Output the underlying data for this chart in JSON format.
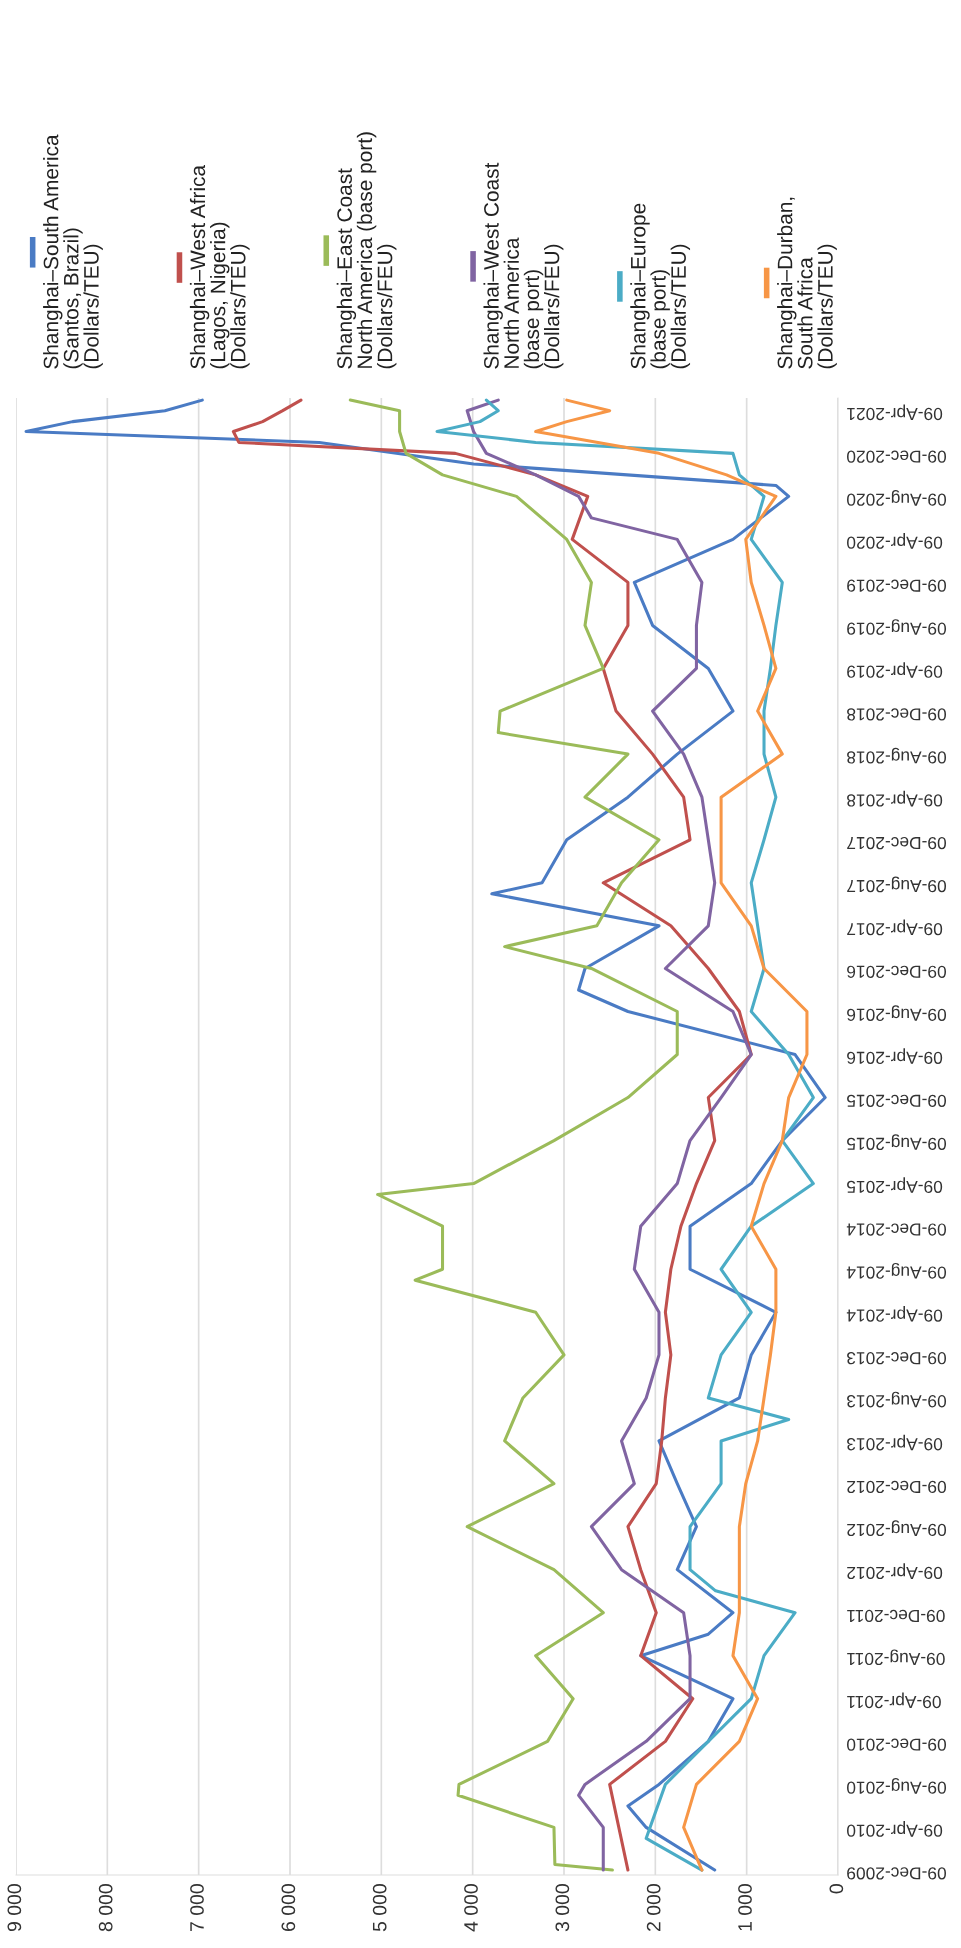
{
  "chart_data": {
    "type": "line",
    "orientation": "horizontal",
    "xlim": [
      9000,
      0
    ],
    "xticks": [
      {
        "value": 9000,
        "label": "9 000"
      },
      {
        "value": 8000,
        "label": "8 000"
      },
      {
        "value": 7000,
        "label": "7 000"
      },
      {
        "value": 6000,
        "label": "6 000"
      },
      {
        "value": 5000,
        "label": "5 000"
      },
      {
        "value": 4000,
        "label": "4 000"
      },
      {
        "value": 3000,
        "label": "3 000"
      },
      {
        "value": 2000,
        "label": "2 000"
      },
      {
        "value": 1000,
        "label": "1 000"
      },
      0
    ],
    "ylim": [
      "2009-11-25",
      "2021-05-15"
    ],
    "yticks": [
      {
        "value": "2009-12-09",
        "label": "09-Dec-2009"
      },
      {
        "value": "2010-04-09",
        "label": "09-Apr-2010"
      },
      {
        "value": "2010-08-09",
        "label": "09-Aug-2010"
      },
      {
        "value": "2010-12-09",
        "label": "09-Dec-2010"
      },
      {
        "value": "2011-04-09",
        "label": "09-Apr-2011"
      },
      {
        "value": "2011-08-09",
        "label": "09-Aug-2011"
      },
      {
        "value": "2011-12-09",
        "label": "09-Dec-2011"
      },
      {
        "value": "2012-04-09",
        "label": "09-Apr-2012"
      },
      {
        "value": "2012-08-09",
        "label": "09-Aug-2012"
      },
      {
        "value": "2012-12-09",
        "label": "09-Dec-2012"
      },
      {
        "value": "2013-04-09",
        "label": "09-Apr-2013"
      },
      {
        "value": "2013-08-09",
        "label": "09-Aug-2013"
      },
      {
        "value": "2013-12-09",
        "label": "09-Dec-2013"
      },
      {
        "value": "2014-04-09",
        "label": "09-Apr-2014"
      },
      {
        "value": "2014-08-09",
        "label": "09-Aug-2014"
      },
      {
        "value": "2014-12-09",
        "label": "09-Dec-2014"
      },
      {
        "value": "2015-04-09",
        "label": "09-Apr-2015"
      },
      {
        "value": "2015-08-09",
        "label": "09-Aug-2015"
      },
      {
        "value": "2015-12-09",
        "label": "09-Dec-2015"
      },
      {
        "value": "2016-04-09",
        "label": "09-Apr-2016"
      },
      {
        "value": "2016-08-09",
        "label": "09-Aug-2016"
      },
      {
        "value": "2016-12-09",
        "label": "09-Dec-2016"
      },
      {
        "value": "2017-04-09",
        "label": "09-Apr-2017"
      },
      {
        "value": "2017-08-09",
        "label": "09-Aug-2017"
      },
      {
        "value": "2017-12-09",
        "label": "09-Dec-2017"
      },
      {
        "value": "2018-04-09",
        "label": "09-Apr-2018"
      },
      {
        "value": "2018-08-09",
        "label": "09-Aug-2018"
      },
      {
        "value": "2018-12-09",
        "label": "09-Dec-2018"
      },
      {
        "value": "2019-04-09",
        "label": "09-Apr-2019"
      },
      {
        "value": "2019-08-09",
        "label": "09-Aug-2019"
      },
      {
        "value": "2019-12-09",
        "label": "09-Dec-2019"
      },
      {
        "value": "2020-04-09",
        "label": "09-Apr-2020"
      },
      {
        "value": "2020-08-09",
        "label": "09-Aug-2020"
      },
      {
        "value": "2020-12-09",
        "label": "09-Dec-2020"
      },
      {
        "value": "2021-04-09",
        "label": "09-Apr-2021"
      }
    ],
    "grid": "x",
    "legend": "top",
    "series": [
      {
        "name": "Shanghai–South America\n(Santos, Brazil)\n(Dollars/TEU)",
        "color": "#4a7bc4",
        "x": [
          "2009-12-09",
          "2010-04-09",
          "2010-06-09",
          "2010-08-09",
          "2010-12-09",
          "2011-04-09",
          "2011-08-09",
          "2011-10-09",
          "2011-12-09",
          "2012-04-09",
          "2012-08-09",
          "2012-12-09",
          "2013-04-09",
          "2013-08-09",
          "2013-12-09",
          "2014-04-09",
          "2014-08-09",
          "2014-12-09",
          "2015-04-09",
          "2015-08-09",
          "2015-12-09",
          "2016-04-09",
          "2016-08-09",
          "2016-10-09",
          "2016-12-09",
          "2017-04-09",
          "2017-07-09",
          "2017-08-09",
          "2017-12-09",
          "2018-04-09",
          "2018-08-09",
          "2018-12-09",
          "2019-04-09",
          "2019-08-09",
          "2019-12-09",
          "2020-04-09",
          "2020-08-09",
          "2020-09-09",
          "2020-11-09",
          "2021-01-09",
          "2021-02-09",
          "2021-03-09",
          "2021-04-09",
          "2021-05-09"
        ],
        "values": [
          1350,
          2100,
          2300,
          1960,
          1420,
          1150,
          2160,
          1420,
          1150,
          1760,
          1550,
          1760,
          1960,
          1080,
          950,
          680,
          1620,
          1620,
          950,
          610,
          140,
          470,
          2300,
          2840,
          2770,
          1960,
          3790,
          3240,
          2970,
          2300,
          1760,
          1150,
          1420,
          2030,
          2230,
          1150,
          540,
          680,
          3990,
          5680,
          8890,
          8380,
          7370,
          6960
        ]
      },
      {
        "name": "Shanghai–West Africa\n(Lagos, Nigeria)\n(Dollars/TEU)",
        "color": "#c0504d",
        "x": [
          "2009-12-09",
          "2010-04-09",
          "2010-08-09",
          "2010-12-09",
          "2011-04-09",
          "2011-08-09",
          "2011-12-09",
          "2012-04-09",
          "2012-08-09",
          "2012-12-09",
          "2013-04-09",
          "2013-08-09",
          "2013-12-09",
          "2014-04-09",
          "2014-08-09",
          "2014-12-09",
          "2015-04-09",
          "2015-08-09",
          "2015-12-09",
          "2016-04-09",
          "2016-08-09",
          "2016-12-09",
          "2017-04-09",
          "2017-08-09",
          "2017-12-09",
          "2018-04-09",
          "2018-08-09",
          "2018-12-09",
          "2019-04-09",
          "2019-08-09",
          "2019-12-09",
          "2020-04-09",
          "2020-08-09",
          "2020-10-09",
          "2020-12-09",
          "2021-01-09",
          "2021-02-09",
          "2021-03-09",
          "2021-04-09",
          "2021-05-09"
        ],
        "values": [
          2300,
          2400,
          2500,
          1890,
          1590,
          2160,
          1990,
          2160,
          2300,
          1990,
          1930,
          1890,
          1830,
          1890,
          1830,
          1720,
          1550,
          1350,
          1420,
          950,
          1080,
          1420,
          1830,
          2570,
          1620,
          1690,
          2030,
          2430,
          2570,
          2300,
          2300,
          2910,
          2740,
          3310,
          4190,
          6560,
          6620,
          6300,
          6080,
          5880
        ]
      },
      {
        "name": "Shanghai–East Coast\nNorth America (base port)\n(Dollars/FEU)",
        "color": "#9bbb59",
        "x": [
          "2009-12-09",
          "2009-12-25",
          "2010-04-09",
          "2010-07-09",
          "2010-08-09",
          "2010-12-09",
          "2011-04-09",
          "2011-08-09",
          "2011-12-09",
          "2012-04-09",
          "2012-08-09",
          "2012-12-09",
          "2013-04-09",
          "2013-08-09",
          "2013-12-09",
          "2014-04-09",
          "2014-07-09",
          "2014-08-09",
          "2014-12-09",
          "2015-03-09",
          "2015-04-09",
          "2015-08-09",
          "2015-12-09",
          "2016-04-09",
          "2016-08-09",
          "2016-12-09",
          "2017-02-09",
          "2017-04-09",
          "2017-08-09",
          "2017-12-09",
          "2018-04-09",
          "2018-08-09",
          "2018-10-09",
          "2018-12-09",
          "2019-04-09",
          "2019-08-09",
          "2019-12-09",
          "2020-04-09",
          "2020-08-09",
          "2020-10-09",
          "2020-12-09",
          "2021-02-09",
          "2021-04-09",
          "2021-05-09"
        ],
        "values": [
          2470,
          3100,
          3110,
          4160,
          4150,
          3180,
          2900,
          3310,
          2570,
          3110,
          4060,
          3110,
          3650,
          3450,
          3000,
          3310,
          4630,
          4330,
          4330,
          5040,
          3990,
          3110,
          2300,
          1760,
          1760,
          2700,
          3650,
          2640,
          2370,
          1960,
          2770,
          2300,
          3720,
          3700,
          2570,
          2770,
          2700,
          2970,
          3520,
          4330,
          4730,
          4800,
          4800,
          5340
        ]
      },
      {
        "name": "Shanghai–West Coast\nNorth America\n(base port)\n(Dollars/FEU)",
        "color": "#8064a2",
        "x": [
          "2009-12-09",
          "2010-04-09",
          "2010-07-09",
          "2010-08-09",
          "2010-12-09",
          "2011-04-09",
          "2011-08-09",
          "2011-12-09",
          "2012-04-09",
          "2012-08-09",
          "2012-12-09",
          "2013-04-09",
          "2013-08-09",
          "2013-12-09",
          "2014-04-09",
          "2014-08-09",
          "2014-12-09",
          "2015-04-09",
          "2015-08-09",
          "2015-12-09",
          "2016-04-09",
          "2016-08-09",
          "2016-12-09",
          "2017-04-09",
          "2017-08-09",
          "2017-12-09",
          "2018-04-09",
          "2018-08-09",
          "2018-12-09",
          "2019-04-09",
          "2019-08-09",
          "2019-12-09",
          "2020-04-09",
          "2020-06-09",
          "2020-08-09",
          "2020-10-09",
          "2020-12-09",
          "2021-02-09",
          "2021-04-09",
          "2021-05-09"
        ],
        "values": [
          2570,
          2570,
          2840,
          2770,
          2100,
          1620,
          1620,
          1690,
          2370,
          2700,
          2230,
          2370,
          2100,
          1960,
          1960,
          2230,
          2160,
          1760,
          1620,
          1280,
          950,
          1150,
          1890,
          1420,
          1350,
          1420,
          1490,
          1690,
          2030,
          1550,
          1550,
          1490,
          1760,
          2700,
          2840,
          3310,
          3850,
          3990,
          4060,
          3720
        ]
      },
      {
        "name": "Shanghai–Europe\n(base port)\n(Dollars/TEU)",
        "color": "#4bacc6",
        "x": [
          "2009-12-09",
          "2010-03-09",
          "2010-08-09",
          "2010-12-09",
          "2011-04-09",
          "2011-08-09",
          "2011-12-09",
          "2012-02-09",
          "2012-04-09",
          "2012-08-09",
          "2012-12-09",
          "2013-04-09",
          "2013-06-09",
          "2013-08-09",
          "2013-12-09",
          "2014-04-09",
          "2014-08-09",
          "2014-12-09",
          "2015-04-09",
          "2015-08-09",
          "2015-12-09",
          "2016-04-09",
          "2016-08-09",
          "2016-12-09",
          "2017-04-09",
          "2017-08-09",
          "2017-12-09",
          "2018-04-09",
          "2018-08-09",
          "2018-12-09",
          "2019-04-09",
          "2019-08-09",
          "2019-12-09",
          "2020-04-09",
          "2020-08-09",
          "2020-10-09",
          "2020-12-09",
          "2021-01-09",
          "2021-02-09",
          "2021-03-09",
          "2021-04-09",
          "2021-05-09"
        ],
        "values": [
          1490,
          2100,
          1890,
          1420,
          950,
          810,
          470,
          1340,
          1620,
          1620,
          1280,
          1280,
          540,
          1420,
          1280,
          950,
          1280,
          950,
          270,
          610,
          270,
          540,
          950,
          810,
          880,
          950,
          810,
          680,
          810,
          810,
          740,
          680,
          610,
          950,
          810,
          1080,
          1150,
          3310,
          4390,
          3920,
          3720,
          3850
        ]
      },
      {
        "name": "Shanghai–Durban,\nSouth Africa\n(Dollars/TEU)",
        "color": "#f79646",
        "x": [
          "2009-12-09",
          "2010-04-09",
          "2010-08-09",
          "2010-12-09",
          "2011-04-09",
          "2011-08-09",
          "2011-12-09",
          "2012-04-09",
          "2012-08-09",
          "2012-12-09",
          "2013-04-09",
          "2013-08-09",
          "2013-12-09",
          "2014-04-09",
          "2014-08-09",
          "2014-12-09",
          "2015-04-09",
          "2015-08-09",
          "2015-12-09",
          "2016-04-09",
          "2016-08-09",
          "2016-12-09",
          "2017-04-09",
          "2017-08-09",
          "2017-12-09",
          "2018-04-09",
          "2018-08-09",
          "2018-12-09",
          "2019-04-09",
          "2019-08-09",
          "2019-12-09",
          "2020-04-09",
          "2020-08-09",
          "2020-10-09",
          "2020-12-09",
          "2021-02-09",
          "2021-03-09",
          "2021-04-09",
          "2021-05-09"
        ],
        "values": [
          1490,
          1690,
          1550,
          1080,
          880,
          1150,
          1080,
          1080,
          1080,
          1010,
          880,
          810,
          740,
          680,
          680,
          950,
          810,
          610,
          540,
          340,
          340,
          810,
          950,
          1280,
          1280,
          1280,
          610,
          880,
          680,
          810,
          950,
          1010,
          680,
          1220,
          1960,
          3310,
          2970,
          2500,
          2970
        ]
      }
    ]
  }
}
